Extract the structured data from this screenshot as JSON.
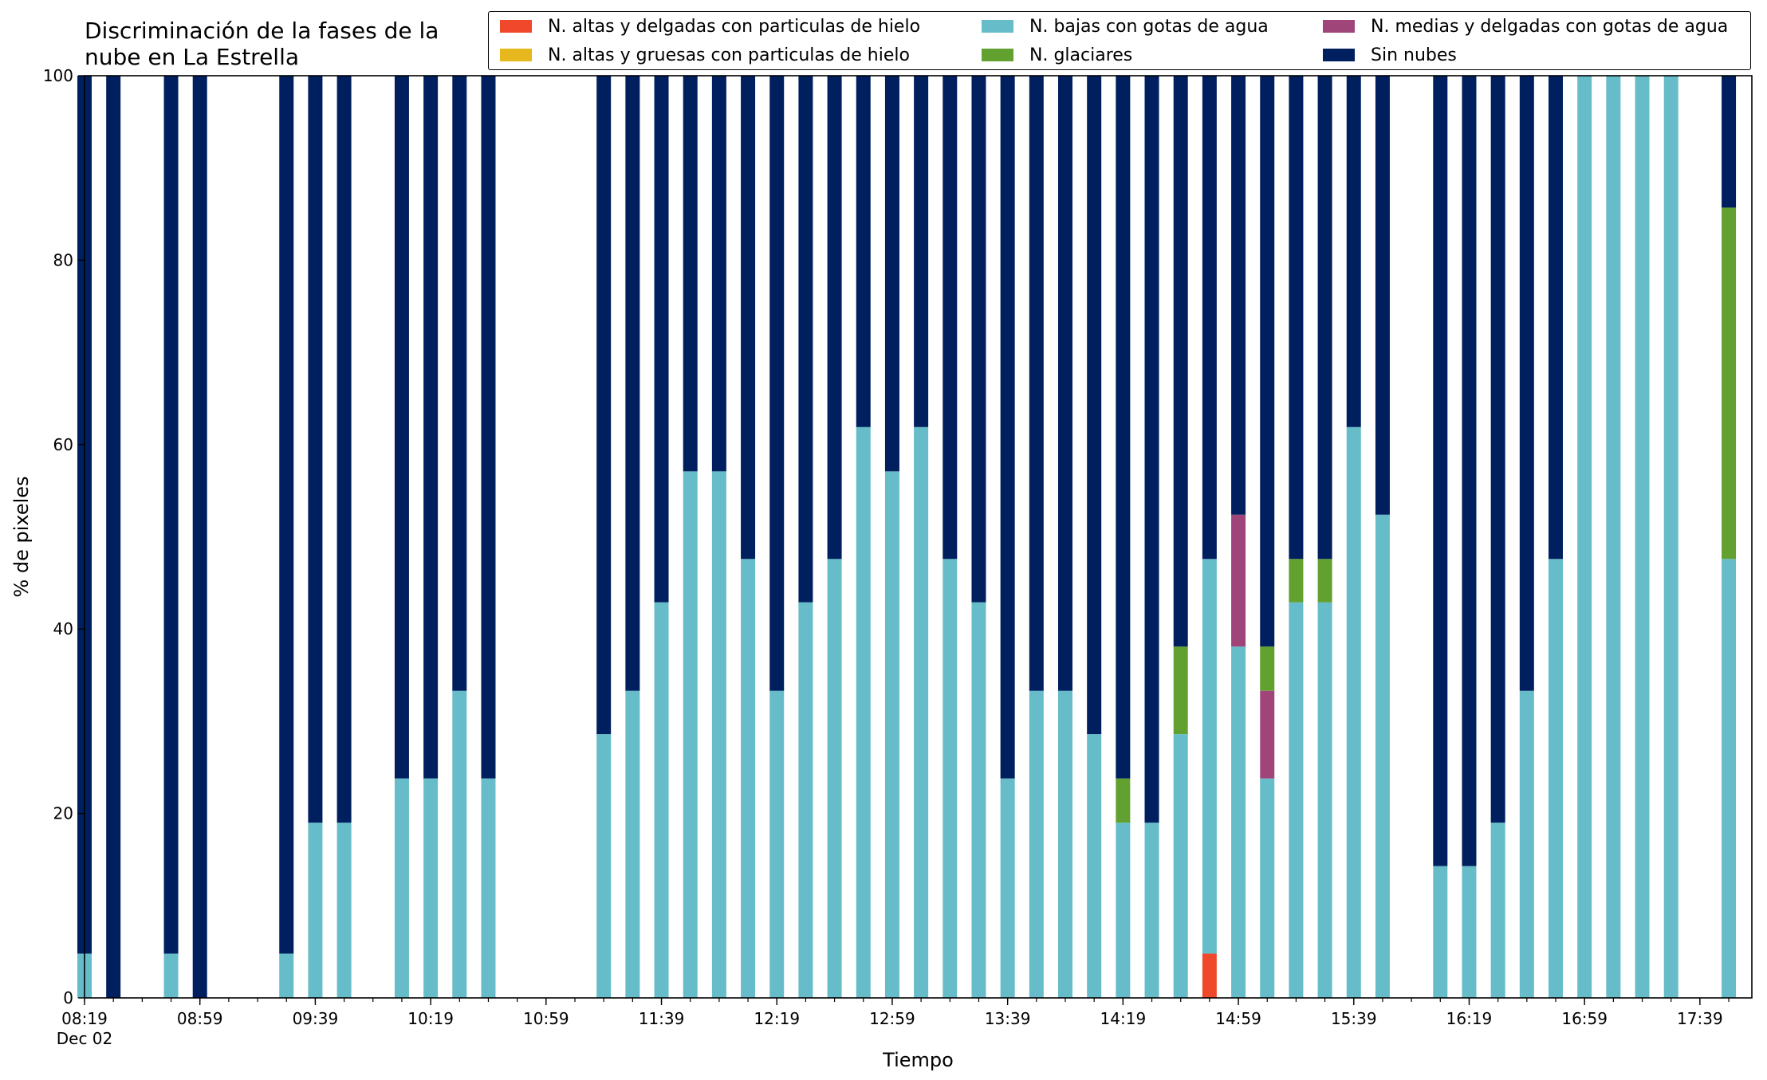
{
  "chart_data": {
    "type": "bar",
    "stacked": true,
    "title": "Discriminación de la fases de la\nnube en La Estrella",
    "xlabel": "Tiempo",
    "ylabel": "% de pixeles",
    "ylim": [
      0,
      100
    ],
    "yticks": [
      0,
      20,
      40,
      60,
      80,
      100
    ],
    "xlim_minutes": [
      499,
      1077
    ],
    "xticks": [
      {
        "minute": 499,
        "label": "08:19",
        "sublabel": "Dec 02"
      },
      {
        "minute": 539,
        "label": "08:59"
      },
      {
        "minute": 579,
        "label": "09:39"
      },
      {
        "minute": 619,
        "label": "10:19"
      },
      {
        "minute": 659,
        "label": "10:59"
      },
      {
        "minute": 699,
        "label": "11:39"
      },
      {
        "minute": 739,
        "label": "12:19"
      },
      {
        "minute": 779,
        "label": "12:59"
      },
      {
        "minute": 819,
        "label": "13:39"
      },
      {
        "minute": 859,
        "label": "14:19"
      },
      {
        "minute": 899,
        "label": "14:59"
      },
      {
        "minute": 939,
        "label": "15:39"
      },
      {
        "minute": 979,
        "label": "16:19"
      },
      {
        "minute": 1019,
        "label": "16:59"
      },
      {
        "minute": 1059,
        "label": "17:39"
      }
    ],
    "minor_tick_step_minutes": 10,
    "grid": false,
    "legend_position": "top",
    "series": [
      {
        "name": "N. altas y delgadas con particulas de hielo",
        "color": "#f0482a"
      },
      {
        "name": "N. altas y gruesas con particulas de hielo",
        "color": "#e6b81e"
      },
      {
        "name": "N. bajas con gotas de agua",
        "color": "#66bdc9"
      },
      {
        "name": "N. medias y delgadas con gotas de agua",
        "color": "#a0457a"
      },
      {
        "name": "N. glaciares",
        "color": "#62a030"
      },
      {
        "name": "Sin nubes",
        "color": "#001f5f"
      }
    ],
    "legend_order": [
      0,
      1,
      2,
      4,
      3,
      5
    ],
    "bars": [
      {
        "time": "08:19",
        "values": [
          0,
          0,
          4.8,
          0,
          0,
          95.2
        ]
      },
      {
        "time": "08:29",
        "values": [
          0,
          0,
          0,
          0,
          0,
          100
        ]
      },
      {
        "time": "08:49",
        "values": [
          0,
          0,
          4.8,
          0,
          0,
          95.2
        ]
      },
      {
        "time": "08:59",
        "values": [
          0,
          0,
          0,
          0,
          0,
          100
        ]
      },
      {
        "time": "09:29",
        "values": [
          0,
          0,
          4.8,
          0,
          0,
          95.2
        ]
      },
      {
        "time": "09:39",
        "values": [
          0,
          0,
          19,
          0,
          0,
          81
        ]
      },
      {
        "time": "09:49",
        "values": [
          0,
          0,
          19,
          0,
          0,
          81
        ]
      },
      {
        "time": "10:09",
        "values": [
          0,
          0,
          23.8,
          0,
          0,
          76.2
        ]
      },
      {
        "time": "10:19",
        "values": [
          0,
          0,
          23.8,
          0,
          0,
          76.2
        ]
      },
      {
        "time": "10:29",
        "values": [
          0,
          0,
          33.3,
          0,
          0,
          66.7
        ]
      },
      {
        "time": "10:39",
        "values": [
          0,
          0,
          23.8,
          0,
          0,
          76.2
        ]
      },
      {
        "time": "11:19",
        "values": [
          0,
          0,
          28.6,
          0,
          0,
          71.4
        ]
      },
      {
        "time": "11:29",
        "values": [
          0,
          0,
          33.3,
          0,
          0,
          66.7
        ]
      },
      {
        "time": "11:39",
        "values": [
          0,
          0,
          42.9,
          0,
          0,
          57.1
        ]
      },
      {
        "time": "11:49",
        "values": [
          0,
          0,
          57.1,
          0,
          0,
          42.9
        ]
      },
      {
        "time": "11:59",
        "values": [
          0,
          0,
          57.1,
          0,
          0,
          42.9
        ]
      },
      {
        "time": "12:09",
        "values": [
          0,
          0,
          47.6,
          0,
          0,
          52.4
        ]
      },
      {
        "time": "12:19",
        "values": [
          0,
          0,
          33.3,
          0,
          0,
          66.7
        ]
      },
      {
        "time": "12:29",
        "values": [
          0,
          0,
          42.9,
          0,
          0,
          57.1
        ]
      },
      {
        "time": "12:39",
        "values": [
          0,
          0,
          47.6,
          0,
          0,
          52.4
        ]
      },
      {
        "time": "12:49",
        "values": [
          0,
          0,
          61.9,
          0,
          0,
          38.1
        ]
      },
      {
        "time": "12:59",
        "values": [
          0,
          0,
          57.1,
          0,
          0,
          42.9
        ]
      },
      {
        "time": "13:09",
        "values": [
          0,
          0,
          61.9,
          0,
          0,
          38.1
        ]
      },
      {
        "time": "13:19",
        "values": [
          0,
          0,
          47.6,
          0,
          0,
          52.4
        ]
      },
      {
        "time": "13:29",
        "values": [
          0,
          0,
          42.9,
          0,
          0,
          57.1
        ]
      },
      {
        "time": "13:39",
        "values": [
          0,
          0,
          23.8,
          0,
          0,
          76.2
        ]
      },
      {
        "time": "13:49",
        "values": [
          0,
          0,
          33.3,
          0,
          0,
          66.7
        ]
      },
      {
        "time": "13:59",
        "values": [
          0,
          0,
          33.3,
          0,
          0,
          66.7
        ]
      },
      {
        "time": "14:09",
        "values": [
          0,
          0,
          28.6,
          0,
          0,
          71.4
        ]
      },
      {
        "time": "14:19",
        "values": [
          0,
          0,
          19,
          0,
          4.8,
          76.2
        ]
      },
      {
        "time": "14:29",
        "values": [
          0,
          0,
          19,
          0,
          0,
          81
        ]
      },
      {
        "time": "14:39",
        "values": [
          0,
          0,
          28.6,
          0,
          9.5,
          61.9
        ]
      },
      {
        "time": "14:49",
        "values": [
          4.8,
          0,
          42.8,
          0,
          0,
          52.4
        ]
      },
      {
        "time": "14:59",
        "values": [
          0,
          0,
          38.1,
          14.3,
          0,
          47.6
        ]
      },
      {
        "time": "15:09",
        "values": [
          0,
          0,
          23.8,
          9.5,
          4.8,
          61.9
        ]
      },
      {
        "time": "15:19",
        "values": [
          0,
          0,
          42.9,
          0,
          4.7,
          52.4
        ]
      },
      {
        "time": "15:29",
        "values": [
          0,
          0,
          42.9,
          0,
          4.7,
          52.4
        ]
      },
      {
        "time": "15:39",
        "values": [
          0,
          0,
          61.9,
          0,
          0,
          38.1
        ]
      },
      {
        "time": "15:49",
        "values": [
          0,
          0,
          52.4,
          0,
          0,
          47.6
        ]
      },
      {
        "time": "16:09",
        "values": [
          0,
          0,
          14.3,
          0,
          0,
          85.7
        ]
      },
      {
        "time": "16:19",
        "values": [
          0,
          0,
          14.3,
          0,
          0,
          85.7
        ]
      },
      {
        "time": "16:29",
        "values": [
          0,
          0,
          19,
          0,
          0,
          81
        ]
      },
      {
        "time": "16:39",
        "values": [
          0,
          0,
          33.3,
          0,
          0,
          66.7
        ]
      },
      {
        "time": "16:49",
        "values": [
          0,
          0,
          47.6,
          0,
          0,
          52.4
        ]
      },
      {
        "time": "16:59",
        "values": [
          0,
          0,
          100,
          0,
          0,
          0
        ]
      },
      {
        "time": "17:09",
        "values": [
          0,
          0,
          100,
          0,
          0,
          0
        ]
      },
      {
        "time": "17:19",
        "values": [
          0,
          0,
          100,
          0,
          0,
          0
        ]
      },
      {
        "time": "17:29",
        "values": [
          0,
          0,
          100,
          0,
          0,
          0
        ]
      },
      {
        "time": "17:49",
        "values": [
          0,
          0,
          47.6,
          0,
          38.1,
          14.3
        ]
      }
    ]
  }
}
